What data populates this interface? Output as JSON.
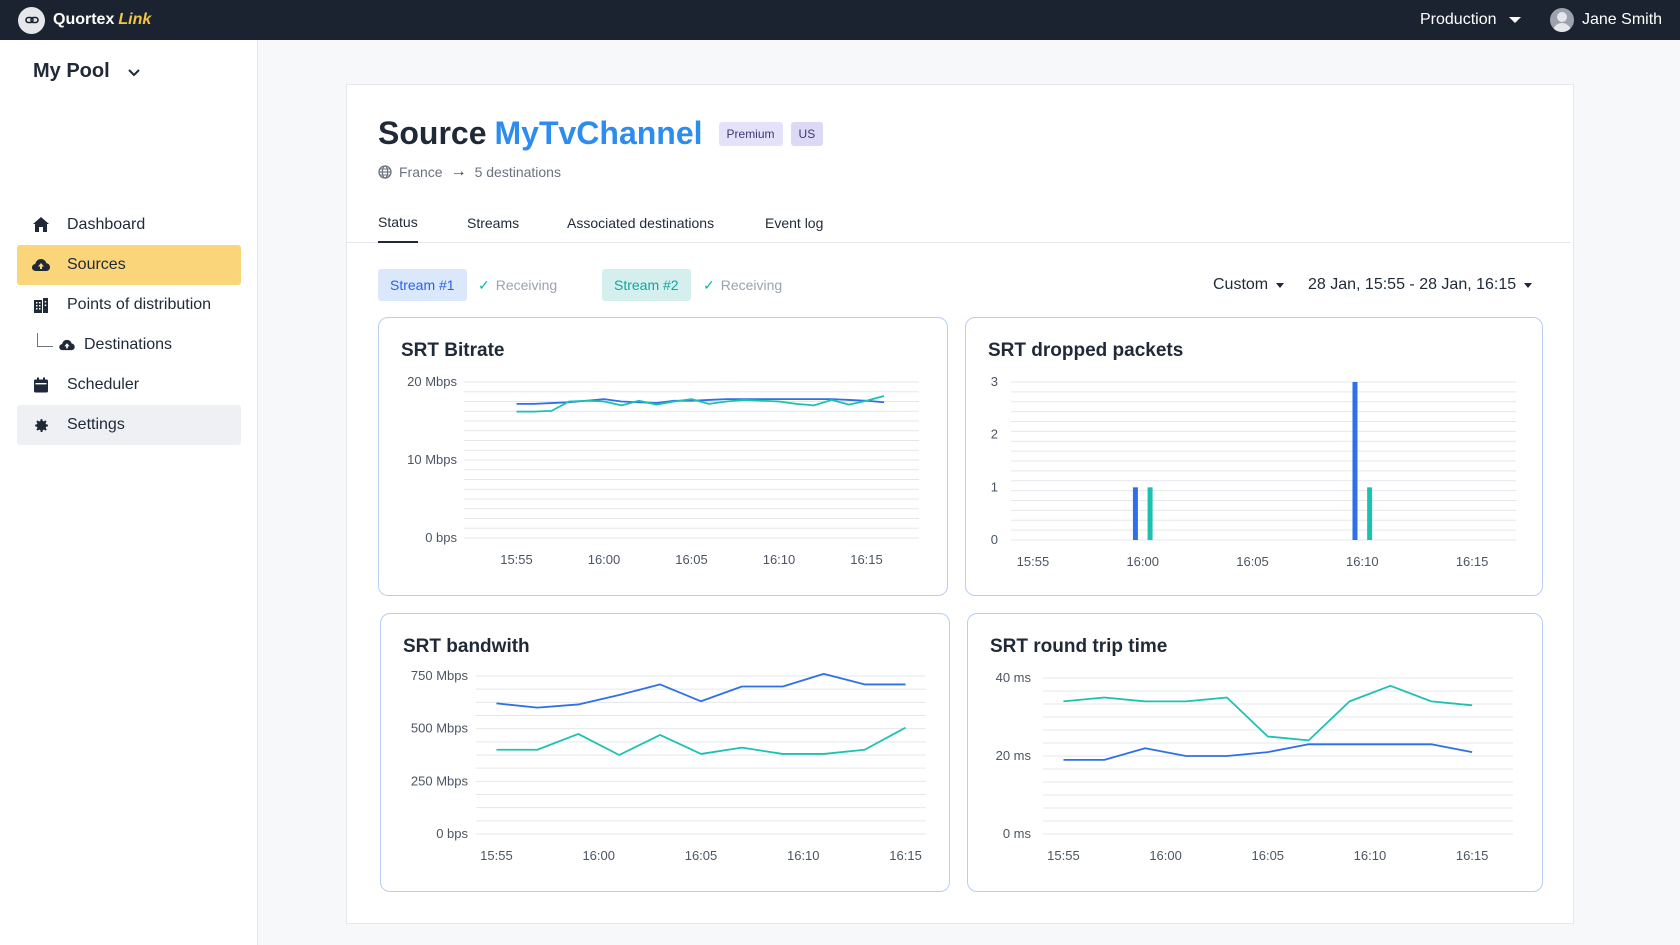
{
  "topbar": {
    "brand": "Quortex",
    "brand_accent": "Link",
    "environment": "Production",
    "user_name": "Jane Smith"
  },
  "sidebar": {
    "pool": "My Pool",
    "items": [
      {
        "label": "Dashboard",
        "icon": "home-icon"
      },
      {
        "label": "Sources",
        "icon": "cloud-upload-icon",
        "active": true
      },
      {
        "label": "Points of distribution",
        "icon": "building-icon"
      },
      {
        "label": "Destinations",
        "icon": "cloud-upload-icon",
        "sub": true
      },
      {
        "label": "Scheduler",
        "icon": "calendar-icon"
      },
      {
        "label": "Settings",
        "icon": "gear-icon"
      }
    ]
  },
  "source": {
    "title_prefix": "Source",
    "name": "MyTvChannel",
    "tags": [
      "Premium",
      "US"
    ],
    "origin": "France",
    "destinations": "5 destinations"
  },
  "tabs": [
    "Status",
    "Streams",
    "Associated destinations",
    "Event log"
  ],
  "streams": [
    {
      "label": "Stream #1",
      "status": "Receiving"
    },
    {
      "label": "Stream #2",
      "status": "Receiving"
    }
  ],
  "range": {
    "mode": "Custom",
    "value": "28 Jan, 15:55 - 28 Jan, 16:15"
  },
  "colors": {
    "stream1": "#2f6fe8",
    "stream2": "#1cc2b0",
    "grid": "#e5e7eb",
    "accent": "#fad57a"
  },
  "chart_data": [
    {
      "type": "line",
      "title": "SRT Bitrate",
      "x": [
        "15:55",
        "15:56",
        "15:57",
        "15:58",
        "15:59",
        "16:00",
        "16:01",
        "16:02",
        "16:03",
        "16:04",
        "16:05",
        "16:06",
        "16:07",
        "16:08",
        "16:09",
        "16:10",
        "16:11",
        "16:12",
        "16:13",
        "16:14",
        "16:15",
        "16:16"
      ],
      "xticks": [
        "15:55",
        "16:00",
        "16:05",
        "16:10",
        "16:15"
      ],
      "yticks": [
        "0 bps",
        "10 Mbps",
        "20 Mbps"
      ],
      "ylim": [
        0,
        20
      ],
      "series": [
        {
          "name": "Stream #1",
          "values": [
            17.2,
            17.2,
            17.3,
            17.4,
            17.6,
            17.8,
            17.5,
            17.4,
            17.3,
            17.6,
            17.6,
            17.7,
            17.8,
            17.8,
            17.8,
            17.8,
            17.8,
            17.8,
            17.8,
            17.7,
            17.6,
            17.4
          ]
        },
        {
          "name": "Stream #2",
          "values": [
            16.2,
            16.2,
            16.3,
            17.5,
            17.6,
            17.5,
            17.0,
            17.6,
            17.1,
            17.5,
            17.8,
            17.2,
            17.5,
            17.7,
            17.6,
            17.5,
            17.2,
            17.0,
            17.7,
            17.1,
            17.6,
            18.2
          ]
        }
      ]
    },
    {
      "type": "bar",
      "title": "SRT dropped packets",
      "xticks": [
        "15:55",
        "16:00",
        "16:05",
        "16:10",
        "16:15"
      ],
      "yticks": [
        "0",
        "1",
        "2",
        "3"
      ],
      "ylim": [
        0,
        3
      ],
      "series": [
        {
          "name": "Stream #1",
          "points": [
            {
              "x": "15:59:40",
              "y": 1
            },
            {
              "x": "16:09:40",
              "y": 3
            }
          ]
        },
        {
          "name": "Stream #2",
          "points": [
            {
              "x": "16:00:20",
              "y": 1
            },
            {
              "x": "16:10:20",
              "y": 1
            }
          ]
        }
      ]
    },
    {
      "type": "line",
      "title": "SRT bandwith",
      "x": [
        "15:55",
        "15:57",
        "15:59",
        "16:01",
        "16:03",
        "16:05",
        "16:07",
        "16:09",
        "16:11",
        "16:13",
        "16:15"
      ],
      "xticks": [
        "15:55",
        "16:00",
        "16:05",
        "16:10",
        "16:15"
      ],
      "yticks": [
        "0 bps",
        "250 Mbps",
        "500 Mbps",
        "750 Mbps"
      ],
      "ylim": [
        0,
        750
      ],
      "series": [
        {
          "name": "Stream #1",
          "values": [
            620,
            600,
            615,
            660,
            710,
            630,
            700,
            700,
            760,
            710,
            710
          ]
        },
        {
          "name": "Stream #2",
          "values": [
            400,
            400,
            475,
            375,
            470,
            380,
            410,
            380,
            380,
            400,
            505
          ]
        }
      ]
    },
    {
      "type": "line",
      "title": "SRT round trip time",
      "x": [
        "15:55",
        "15:57",
        "15:59",
        "16:01",
        "16:03",
        "16:05",
        "16:07",
        "16:09",
        "16:11",
        "16:13",
        "16:15"
      ],
      "xticks": [
        "15:55",
        "16:00",
        "16:05",
        "16:10",
        "16:15"
      ],
      "yticks": [
        "0 ms",
        "20 ms",
        "40 ms"
      ],
      "ylim": [
        0,
        40
      ],
      "series": [
        {
          "name": "Stream #1",
          "values": [
            19,
            19,
            22,
            20,
            20,
            21,
            23,
            23,
            23,
            23,
            21
          ]
        },
        {
          "name": "Stream #2",
          "values": [
            34,
            35,
            34,
            34,
            35,
            25,
            24,
            34,
            38,
            34,
            33
          ]
        }
      ]
    }
  ]
}
